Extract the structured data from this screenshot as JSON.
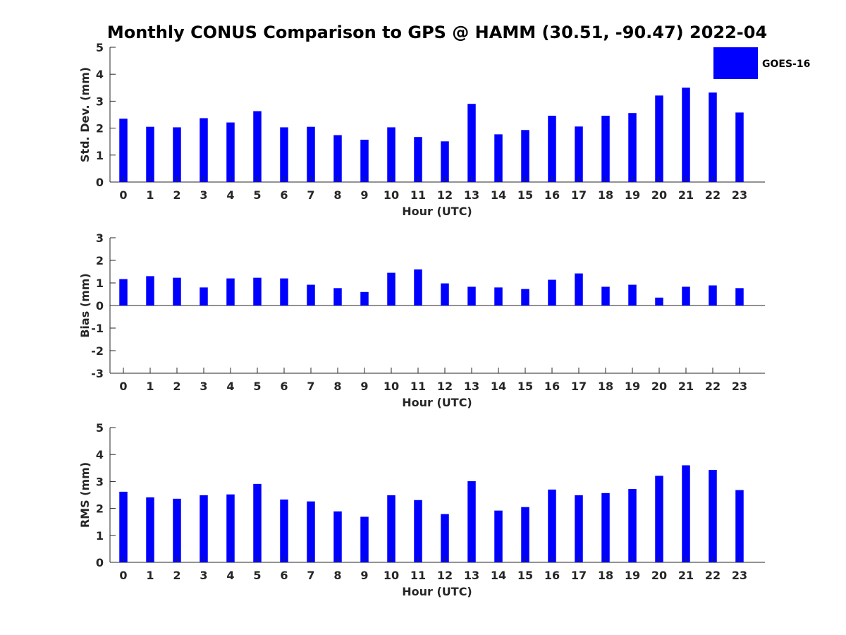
{
  "figure": {
    "title": "Monthly CONUS Comparison to GPS @ HAMM (30.51, -90.47) 2022-04",
    "legend_label": "GOES-16",
    "bar_color": "#0000ff"
  },
  "chart_data": [
    {
      "type": "bar",
      "name": "std_dev",
      "xlabel": "Hour (UTC)",
      "ylabel": "Std. Dev. (mm)",
      "categories": [
        "0",
        "1",
        "2",
        "3",
        "4",
        "5",
        "6",
        "7",
        "8",
        "9",
        "10",
        "11",
        "12",
        "13",
        "14",
        "15",
        "16",
        "17",
        "18",
        "19",
        "20",
        "21",
        "22",
        "23"
      ],
      "series": [
        {
          "name": "GOES-16",
          "values": [
            2.35,
            2.05,
            2.03,
            2.37,
            2.21,
            2.63,
            2.03,
            2.05,
            1.74,
            1.57,
            2.03,
            1.67,
            1.51,
            2.9,
            1.77,
            1.93,
            2.46,
            2.06,
            2.46,
            2.56,
            3.21,
            3.5,
            3.32,
            2.58
          ]
        }
      ],
      "ylim": [
        0,
        5
      ],
      "yticks": [
        "0",
        "1",
        "2",
        "3",
        "4",
        "5"
      ],
      "legend": "top-right",
      "grid": false
    },
    {
      "type": "bar",
      "name": "bias",
      "xlabel": "Hour (UTC)",
      "ylabel": "Bias (mm)",
      "categories": [
        "0",
        "1",
        "2",
        "3",
        "4",
        "5",
        "6",
        "7",
        "8",
        "9",
        "10",
        "11",
        "12",
        "13",
        "14",
        "15",
        "16",
        "17",
        "18",
        "19",
        "20",
        "21",
        "22",
        "23"
      ],
      "series": [
        {
          "name": "GOES-16",
          "values": [
            1.17,
            1.3,
            1.23,
            0.8,
            1.2,
            1.23,
            1.2,
            0.92,
            0.77,
            0.6,
            1.45,
            1.6,
            0.98,
            0.83,
            0.8,
            0.73,
            1.14,
            1.42,
            0.83,
            0.92,
            0.35,
            0.83,
            0.89,
            0.77
          ]
        }
      ],
      "ylim": [
        -3,
        3
      ],
      "yticks": [
        "-3",
        "-2",
        "-1",
        "0",
        "1",
        "2",
        "3"
      ],
      "grid": false
    },
    {
      "type": "bar",
      "name": "rms",
      "xlabel": "Hour (UTC)",
      "ylabel": "RMS (mm)",
      "categories": [
        "0",
        "1",
        "2",
        "3",
        "4",
        "5",
        "6",
        "7",
        "8",
        "9",
        "10",
        "11",
        "12",
        "13",
        "14",
        "15",
        "16",
        "17",
        "18",
        "19",
        "20",
        "21",
        "22",
        "23"
      ],
      "series": [
        {
          "name": "GOES-16",
          "values": [
            2.62,
            2.41,
            2.36,
            2.49,
            2.52,
            2.91,
            2.33,
            2.26,
            1.89,
            1.69,
            2.49,
            2.31,
            1.79,
            3.01,
            1.92,
            2.05,
            2.7,
            2.49,
            2.57,
            2.72,
            3.21,
            3.6,
            3.43,
            2.68
          ]
        }
      ],
      "ylim": [
        0,
        5
      ],
      "yticks": [
        "0",
        "1",
        "2",
        "3",
        "4",
        "5"
      ],
      "grid": false
    }
  ]
}
